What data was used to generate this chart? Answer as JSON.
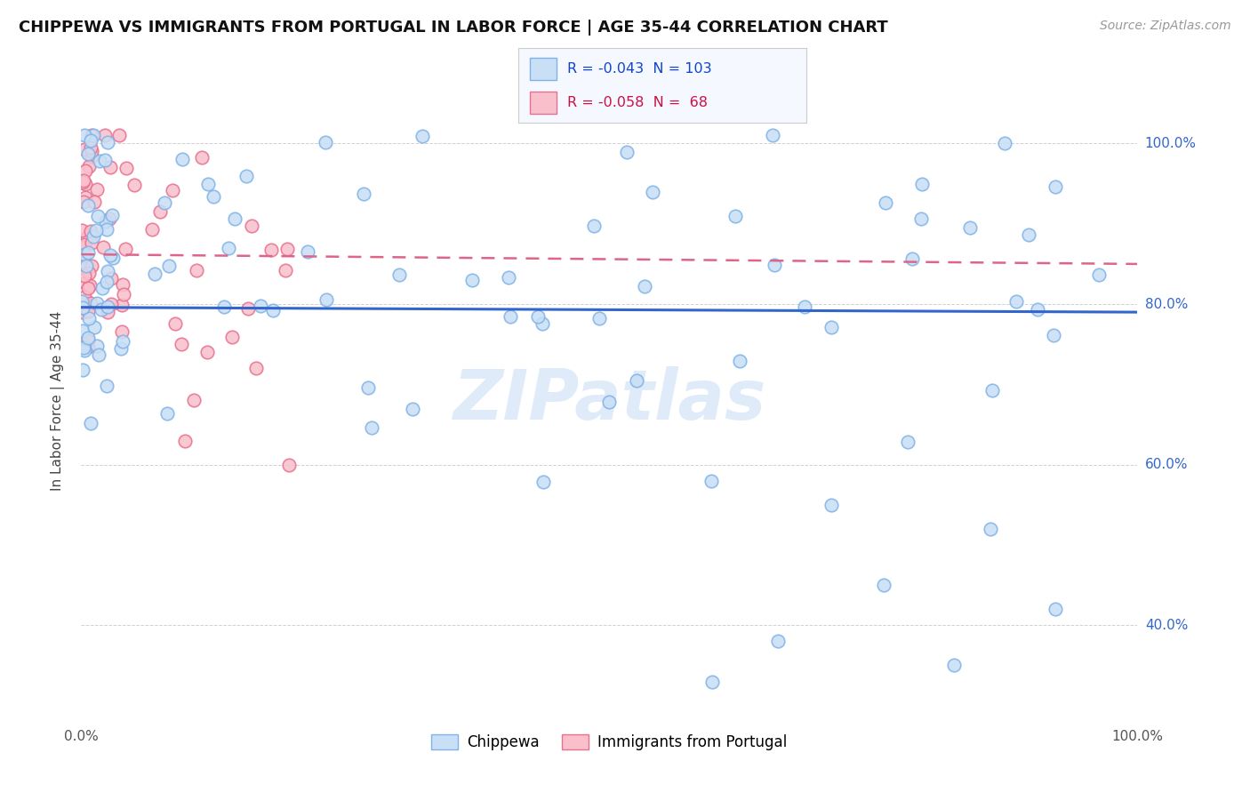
{
  "title": "CHIPPEWA VS IMMIGRANTS FROM PORTUGAL IN LABOR FORCE | AGE 35-44 CORRELATION CHART",
  "source": "Source: ZipAtlas.com",
  "ylabel": "In Labor Force | Age 35-44",
  "ytick_labels": [
    "40.0%",
    "60.0%",
    "80.0%",
    "100.0%"
  ],
  "ytick_values": [
    0.4,
    0.6,
    0.8,
    1.0
  ],
  "chippewa_color_fill": "#c8dff5",
  "chippewa_color_edge": "#7fb3e8",
  "portugal_color_fill": "#f9c0cc",
  "portugal_color_edge": "#e87090",
  "trend_chippewa_color": "#3366cc",
  "trend_portugal_color": "#dd6688",
  "watermark": "ZIPatlas",
  "chippewa_R": -0.043,
  "chippewa_N": 103,
  "portugal_R": -0.058,
  "portugal_N": 68,
  "xmin": 0.0,
  "xmax": 1.0,
  "ymin": 0.28,
  "ymax": 1.08,
  "dot_size": 110,
  "dot_alpha": 0.85,
  "dot_linewidth": 1.2
}
